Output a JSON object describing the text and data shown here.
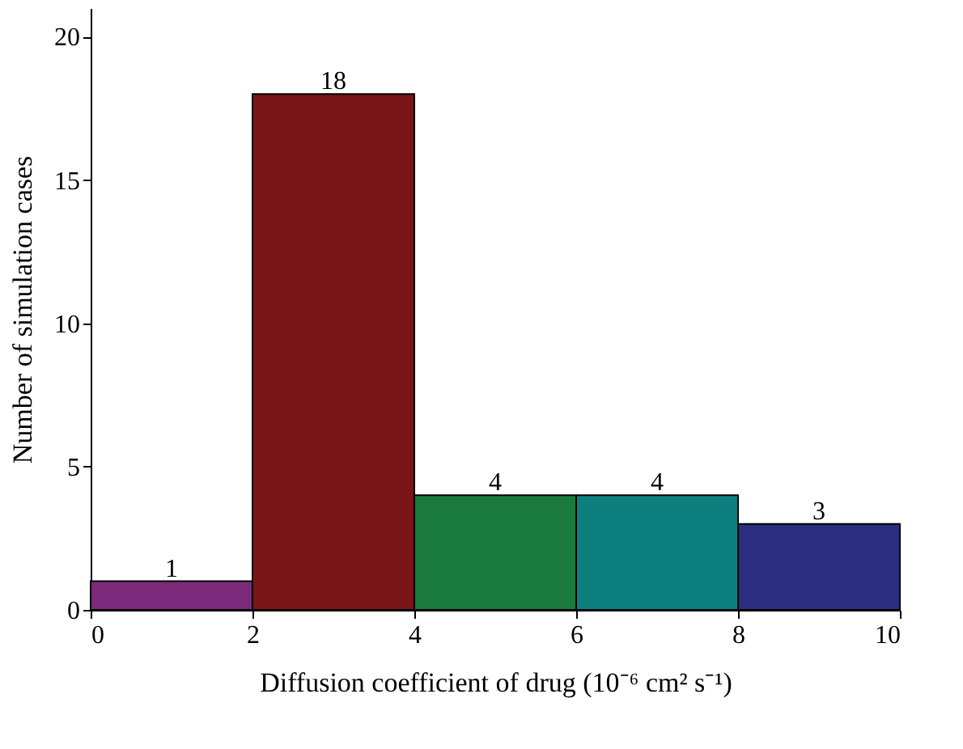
{
  "chart_data": {
    "type": "histogram",
    "xlabel": "Diffusion coefficient of drug (10⁻⁶ cm² s⁻¹)",
    "ylabel": "Number of simulation cases",
    "bins": [
      0,
      2,
      4,
      6,
      8,
      10
    ],
    "values": [
      1,
      18,
      4,
      4,
      3
    ],
    "colors": [
      "#7b2a7b",
      "#7a1518",
      "#1a7a3e",
      "#0e7f7f",
      "#2b2e80"
    ],
    "xlim": [
      0,
      10
    ],
    "xticks": [
      0,
      2,
      4,
      6,
      8,
      10
    ],
    "ylim": [
      0,
      21
    ],
    "yticks": [
      0,
      5,
      10,
      15,
      20
    ],
    "data_labels": true,
    "grid": false,
    "legend": false
  }
}
